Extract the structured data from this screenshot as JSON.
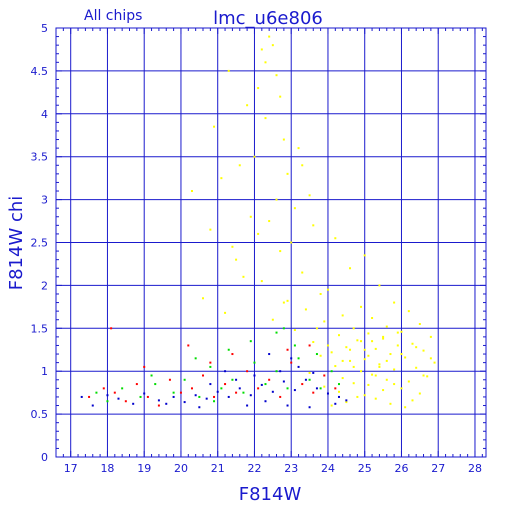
{
  "chart_data": {
    "type": "scatter",
    "title": "lmc_u6e806",
    "subtitle": "All chips",
    "xlabel": "F814W",
    "ylabel": "F814W chi",
    "xlim": [
      16.6,
      28.3
    ],
    "ylim": [
      0,
      5
    ],
    "xticks": [
      17,
      18,
      19,
      20,
      21,
      22,
      23,
      24,
      25,
      26,
      27,
      28
    ],
    "yticks": [
      0,
      0.5,
      1,
      1.5,
      2,
      2.5,
      3,
      3.5,
      4,
      4.5,
      5
    ],
    "ytick_labels": [
      "0",
      "0.5",
      "1",
      "1.5",
      "2",
      "2.5",
      "3",
      "3.5",
      "4",
      "4.5",
      "5"
    ],
    "grid": true,
    "colors": {
      "axis": "#1a1acd",
      "grid": "#1a1acd",
      "text": "#1a1acd"
    },
    "series": [
      {
        "color": "#ffff00",
        "points": [
          [
            22.4,
            4.9
          ],
          [
            22.5,
            4.8
          ],
          [
            22.2,
            4.75
          ],
          [
            21.3,
            4.5
          ],
          [
            22.6,
            4.45
          ],
          [
            22.1,
            4.3
          ],
          [
            22.7,
            4.2
          ],
          [
            21.8,
            4.1
          ],
          [
            22.3,
            3.95
          ],
          [
            20.9,
            3.85
          ],
          [
            22.8,
            3.7
          ],
          [
            23.2,
            3.6
          ],
          [
            22.0,
            3.5
          ],
          [
            21.6,
            3.4
          ],
          [
            22.9,
            3.3
          ],
          [
            21.1,
            3.25
          ],
          [
            20.3,
            3.1
          ],
          [
            23.5,
            3.05
          ],
          [
            22.6,
            3.0
          ],
          [
            23.1,
            2.9
          ],
          [
            21.9,
            2.8
          ],
          [
            22.4,
            2.75
          ],
          [
            23.6,
            2.7
          ],
          [
            20.8,
            2.65
          ],
          [
            24.2,
            2.55
          ],
          [
            23.0,
            2.5
          ],
          [
            21.4,
            2.45
          ],
          [
            22.7,
            2.4
          ],
          [
            25.0,
            2.35
          ],
          [
            24.6,
            2.2
          ],
          [
            23.3,
            2.15
          ],
          [
            21.7,
            2.1
          ],
          [
            22.2,
            2.05
          ],
          [
            25.4,
            2.0
          ],
          [
            24.0,
            1.95
          ],
          [
            23.8,
            1.9
          ],
          [
            20.6,
            1.85
          ],
          [
            22.9,
            1.82
          ],
          [
            25.8,
            1.8
          ],
          [
            24.9,
            1.75
          ],
          [
            23.4,
            1.72
          ],
          [
            26.2,
            1.7
          ],
          [
            21.2,
            1.68
          ],
          [
            24.4,
            1.65
          ],
          [
            25.2,
            1.62
          ],
          [
            22.5,
            1.6
          ],
          [
            23.9,
            1.58
          ],
          [
            26.5,
            1.55
          ],
          [
            25.6,
            1.52
          ],
          [
            24.7,
            1.5
          ],
          [
            23.1,
            1.48
          ],
          [
            26.0,
            1.46
          ],
          [
            25.1,
            1.44
          ],
          [
            24.3,
            1.42
          ],
          [
            26.8,
            1.4
          ],
          [
            25.5,
            1.38
          ],
          [
            24.8,
            1.36
          ],
          [
            23.6,
            1.34
          ],
          [
            26.3,
            1.32
          ],
          [
            25.9,
            1.3
          ],
          [
            24.5,
            1.28
          ],
          [
            25.3,
            1.26
          ],
          [
            26.6,
            1.24
          ],
          [
            24.1,
            1.22
          ],
          [
            25.7,
            1.2
          ],
          [
            23.8,
            1.18
          ],
          [
            26.1,
            1.16
          ],
          [
            25.0,
            1.14
          ],
          [
            24.6,
            1.12
          ],
          [
            26.9,
            1.1
          ],
          [
            25.4,
            1.08
          ],
          [
            24.2,
            1.06
          ],
          [
            26.4,
            1.04
          ],
          [
            25.8,
            1.02
          ],
          [
            24.9,
            1.0
          ],
          [
            23.5,
            0.98
          ],
          [
            25.2,
            0.96
          ],
          [
            26.7,
            0.94
          ],
          [
            24.4,
            0.92
          ],
          [
            25.6,
            0.9
          ],
          [
            26.2,
            0.88
          ],
          [
            24.7,
            0.86
          ],
          [
            25.1,
            0.84
          ],
          [
            23.9,
            0.82
          ],
          [
            26.0,
            0.8
          ],
          [
            25.5,
            0.78
          ],
          [
            24.3,
            0.76
          ],
          [
            26.5,
            0.74
          ],
          [
            25.0,
            0.72
          ],
          [
            24.8,
            0.7
          ],
          [
            25.3,
            0.68
          ],
          [
            26.3,
            0.66
          ],
          [
            24.5,
            0.64
          ],
          [
            25.7,
            0.62
          ],
          [
            24.1,
            0.6
          ],
          [
            26.1,
            0.58
          ],
          [
            25.9,
            1.45
          ],
          [
            25.2,
            1.35
          ],
          [
            24.6,
            1.25
          ],
          [
            26.8,
            1.15
          ],
          [
            25.4,
            1.05
          ],
          [
            26.6,
            0.95
          ],
          [
            24.0,
            1.3
          ],
          [
            23.7,
            1.5
          ],
          [
            22.8,
            1.8
          ],
          [
            21.5,
            2.3
          ],
          [
            22.1,
            2.6
          ],
          [
            23.3,
            3.4
          ],
          [
            22.3,
            4.6
          ],
          [
            25.0,
            1.25
          ],
          [
            25.6,
            1.12
          ],
          [
            26.0,
            1.2
          ],
          [
            24.9,
            1.35
          ],
          [
            25.3,
            0.95
          ],
          [
            24.7,
            1.05
          ],
          [
            26.4,
            1.28
          ],
          [
            25.8,
            0.85
          ],
          [
            25.1,
            1.18
          ],
          [
            24.4,
            1.12
          ],
          [
            25.5,
            1.4
          ]
        ]
      },
      {
        "color": "#ff0000",
        "points": [
          [
            17.5,
            0.7
          ],
          [
            17.9,
            0.8
          ],
          [
            18.2,
            0.75
          ],
          [
            18.5,
            0.65
          ],
          [
            18.8,
            0.85
          ],
          [
            19.1,
            0.7
          ],
          [
            19.4,
            0.6
          ],
          [
            19.7,
            0.9
          ],
          [
            20.0,
            0.75
          ],
          [
            20.3,
            0.8
          ],
          [
            20.6,
            0.95
          ],
          [
            20.9,
            0.7
          ],
          [
            21.2,
            0.85
          ],
          [
            21.5,
            0.75
          ],
          [
            21.8,
            1.0
          ],
          [
            22.1,
            0.8
          ],
          [
            22.4,
            0.9
          ],
          [
            22.7,
            0.7
          ],
          [
            23.0,
            1.1
          ],
          [
            23.3,
            0.85
          ],
          [
            23.6,
            0.75
          ],
          [
            23.9,
            0.95
          ],
          [
            24.2,
            0.8
          ],
          [
            20.2,
            1.3
          ],
          [
            21.4,
            1.2
          ],
          [
            18.1,
            1.5
          ],
          [
            19.0,
            1.05
          ],
          [
            22.9,
            1.25
          ],
          [
            20.8,
            1.1
          ],
          [
            23.5,
            1.3
          ]
        ]
      },
      {
        "color": "#00dd00",
        "points": [
          [
            17.7,
            0.75
          ],
          [
            18.0,
            0.65
          ],
          [
            18.4,
            0.8
          ],
          [
            18.9,
            0.7
          ],
          [
            19.3,
            0.85
          ],
          [
            19.8,
            0.75
          ],
          [
            20.1,
            0.9
          ],
          [
            20.5,
            0.7
          ],
          [
            20.8,
            1.05
          ],
          [
            21.1,
            0.8
          ],
          [
            21.4,
            0.9
          ],
          [
            21.7,
            0.75
          ],
          [
            22.0,
            1.1
          ],
          [
            22.3,
            0.85
          ],
          [
            22.6,
            1.0
          ],
          [
            22.9,
            0.8
          ],
          [
            23.2,
            1.15
          ],
          [
            23.5,
            0.9
          ],
          [
            23.8,
            0.8
          ],
          [
            24.1,
            1.0
          ],
          [
            21.9,
            1.35
          ],
          [
            22.6,
            1.45
          ],
          [
            23.1,
            1.3
          ],
          [
            20.4,
            1.15
          ],
          [
            19.2,
            0.95
          ],
          [
            21.3,
            1.25
          ],
          [
            22.8,
            1.5
          ],
          [
            23.7,
            1.2
          ],
          [
            24.3,
            0.85
          ],
          [
            20.9,
            0.65
          ]
        ]
      },
      {
        "color": "#0000cc",
        "points": [
          [
            17.3,
            0.7
          ],
          [
            17.6,
            0.6
          ],
          [
            18.0,
            0.72
          ],
          [
            18.3,
            0.68
          ],
          [
            18.7,
            0.62
          ],
          [
            19.0,
            0.74
          ],
          [
            19.4,
            0.66
          ],
          [
            19.8,
            0.7
          ],
          [
            20.1,
            0.64
          ],
          [
            20.4,
            0.72
          ],
          [
            20.7,
            0.68
          ],
          [
            21.0,
            0.76
          ],
          [
            21.3,
            0.7
          ],
          [
            21.6,
            0.8
          ],
          [
            21.9,
            0.72
          ],
          [
            22.2,
            0.84
          ],
          [
            22.5,
            0.76
          ],
          [
            22.8,
            0.88
          ],
          [
            23.1,
            0.78
          ],
          [
            23.4,
            0.9
          ],
          [
            23.7,
            0.8
          ],
          [
            24.0,
            0.74
          ],
          [
            24.3,
            0.7
          ],
          [
            24.5,
            0.66
          ],
          [
            22.0,
            0.95
          ],
          [
            22.7,
            1.0
          ],
          [
            23.2,
            1.05
          ],
          [
            23.6,
            0.98
          ],
          [
            21.5,
            0.9
          ],
          [
            20.8,
            0.85
          ],
          [
            22.3,
            0.65
          ],
          [
            22.9,
            0.6
          ],
          [
            23.5,
            0.58
          ],
          [
            24.2,
            0.62
          ],
          [
            21.8,
            0.6
          ],
          [
            20.5,
            0.58
          ],
          [
            19.6,
            0.62
          ],
          [
            23.0,
            1.15
          ],
          [
            22.4,
            1.2
          ],
          [
            21.2,
            1.0
          ]
        ]
      }
    ]
  }
}
